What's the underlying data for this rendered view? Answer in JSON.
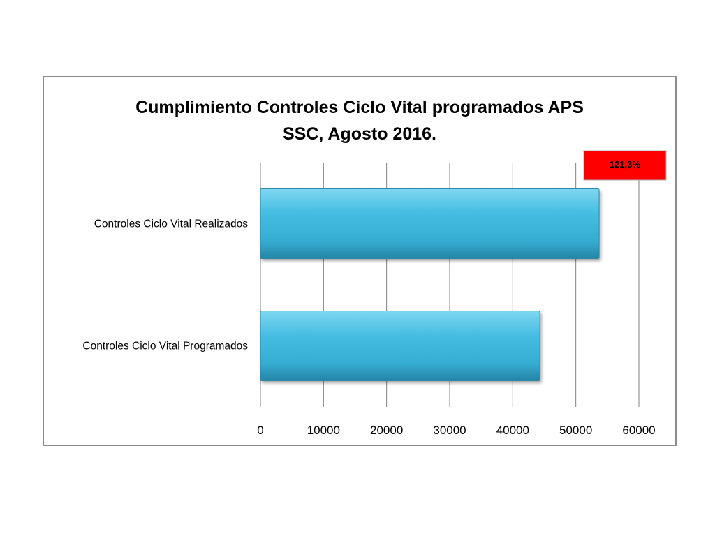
{
  "chart_data": {
    "type": "bar",
    "orientation": "horizontal",
    "title": "Cumplimiento Controles Ciclo Vital programados APS SSC, Agosto 2016.",
    "title_lines": [
      "Cumplimiento Controles Ciclo Vital programados APS",
      "SSC, Agosto 2016."
    ],
    "categories": [
      "Controles Ciclo Vital Realizados",
      "Controles Ciclo Vital Programados"
    ],
    "values": [
      53700,
      44300
    ],
    "xlim": [
      0,
      60000
    ],
    "x_ticks": [
      "0",
      "10000",
      "20000",
      "30000",
      "40000",
      "50000",
      "60000"
    ],
    "xlabel": "",
    "ylabel": "",
    "grid": "vertical",
    "legend": "none",
    "annotation": {
      "text": "121,3%",
      "background": "#ff0000",
      "attached_to": "Controles Ciclo Vital Realizados"
    },
    "colors": {
      "bar_fill": "#3fb7dc",
      "bar_edge": "#2a89a8",
      "grid": "#808080"
    }
  }
}
